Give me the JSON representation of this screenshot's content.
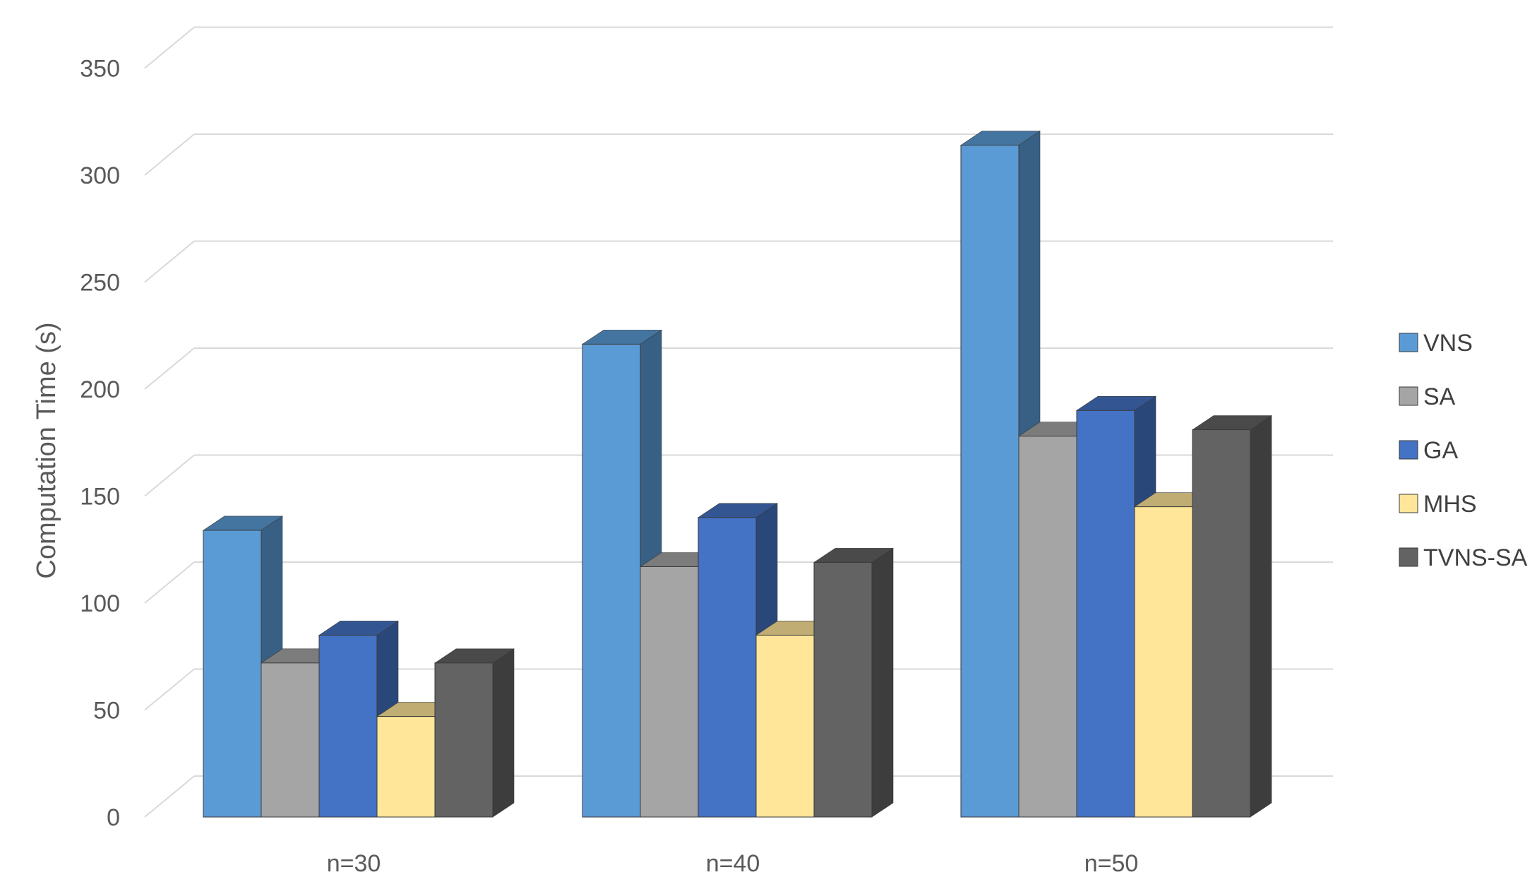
{
  "chart_data": {
    "type": "bar",
    "title": "",
    "xlabel": "",
    "ylabel": "Computation Time (s)",
    "ylim": [
      0,
      350
    ],
    "yticks": [
      0,
      50,
      100,
      150,
      200,
      250,
      300,
      350
    ],
    "grid": true,
    "legend_position": "right",
    "categories": [
      "n=30",
      "n=40",
      "n=50"
    ],
    "series": [
      {
        "name": "VNS",
        "values": [
          134,
          221,
          314
        ],
        "color": "#5b9bd5"
      },
      {
        "name": "SA",
        "values": [
          72,
          117,
          178
        ],
        "color": "#a5a5a5"
      },
      {
        "name": "GA",
        "values": [
          85,
          140,
          190
        ],
        "color": "#4472c4"
      },
      {
        "name": "MHS",
        "values": [
          47,
          85,
          145
        ],
        "color": "#ffe699"
      },
      {
        "name": "TVNS-SA",
        "values": [
          72,
          119,
          181
        ],
        "color": "#636363"
      }
    ]
  }
}
